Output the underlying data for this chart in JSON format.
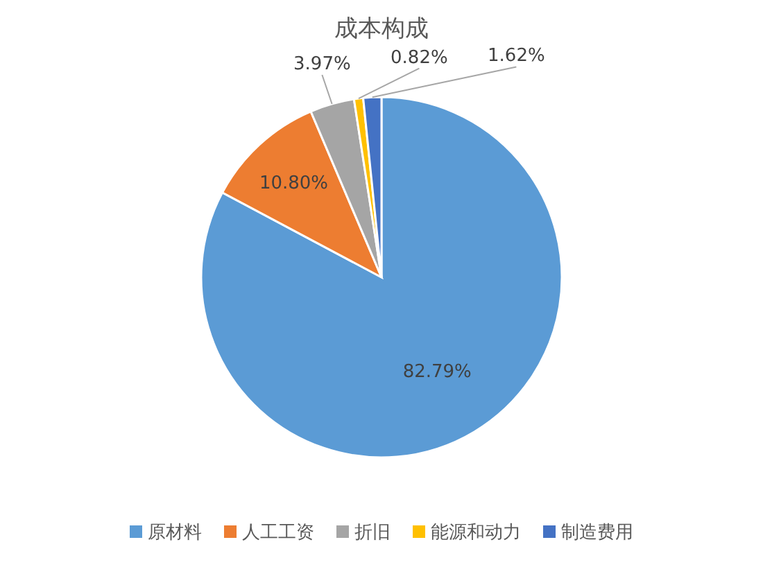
{
  "chart_data": {
    "type": "pie",
    "title": "成本构成",
    "categories": [
      "原材料",
      "人工工资",
      "折旧",
      "能源和动力",
      "制造费用"
    ],
    "values": [
      82.79,
      10.8,
      3.97,
      0.82,
      1.62
    ],
    "value_labels": [
      "82.79%",
      "10.80%",
      "3.97%",
      "0.82%",
      "1.62%"
    ],
    "colors": [
      "#5b9bd5",
      "#ed7d31",
      "#a5a5a5",
      "#ffc000",
      "#4472c4"
    ],
    "legend": "bottom"
  }
}
